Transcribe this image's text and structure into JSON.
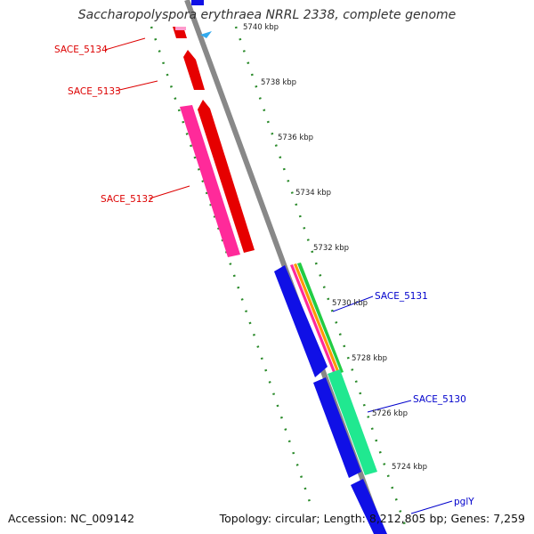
{
  "title": "Saccharopolyspora erythraea NRRL 2338, complete genome",
  "accession_text": "Accession: NC_009142",
  "meta_text": "Topology: circular; Length: 8,212,805 bp; Genes: 7,259",
  "ticks": [
    {
      "label": "5740 kbp",
      "kbp": 5740
    },
    {
      "label": "5738 kbp",
      "kbp": 5738
    },
    {
      "label": "5736 kbp",
      "kbp": 5736
    },
    {
      "label": "5734 kbp",
      "kbp": 5734
    },
    {
      "label": "5732 kbp",
      "kbp": 5732
    },
    {
      "label": "5730 kbp",
      "kbp": 5730
    },
    {
      "label": "5728 kbp",
      "kbp": 5728
    },
    {
      "label": "5726 kbp",
      "kbp": 5726
    },
    {
      "label": "5724 kbp",
      "kbp": 5724
    }
  ],
  "gene_labels": [
    {
      "text": "SACE_5134",
      "color": "#dd0000"
    },
    {
      "text": "SACE_5133",
      "color": "#dd0000"
    },
    {
      "text": "SACE_5132",
      "color": "#dd0000"
    },
    {
      "text": "SACE_5131",
      "color": "#0000cc"
    },
    {
      "text": "SACE_5130",
      "color": "#0000cc"
    },
    {
      "text": "pglY",
      "color": "#0000cc"
    }
  ],
  "colors": {
    "backbone": "#888888",
    "forward_cds": "#e60000",
    "reverse_cds": "#1010e6",
    "pink_feature": "#ff2a9a",
    "green_feature": "#20e890",
    "tick_dots": "#2a8a2a",
    "marker": "#33aaee"
  }
}
